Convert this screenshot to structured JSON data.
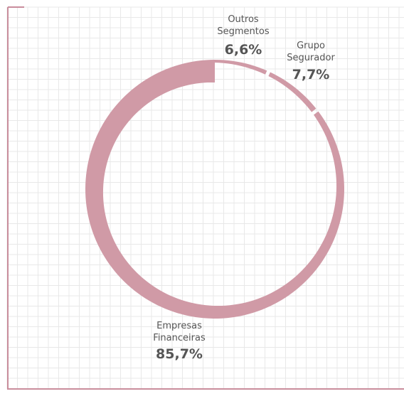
{
  "chart_data": {
    "type": "pie",
    "variant": "donut",
    "segments": [
      {
        "name": [
          "Outros",
          "Segmentos"
        ],
        "value": 6.6,
        "label": "6,6%"
      },
      {
        "name": [
          "Grupo",
          "Segurador"
        ],
        "value": 7.7,
        "label": "7,7%"
      },
      {
        "name": [
          "Empresas",
          "Financeiras"
        ],
        "value": 85.7,
        "label": "85,7%"
      }
    ],
    "grid": true,
    "colors": {
      "segment": "#d09aa6",
      "frame": "#c98d9c",
      "grid": "#e8e8e8",
      "text": "#555555"
    }
  }
}
